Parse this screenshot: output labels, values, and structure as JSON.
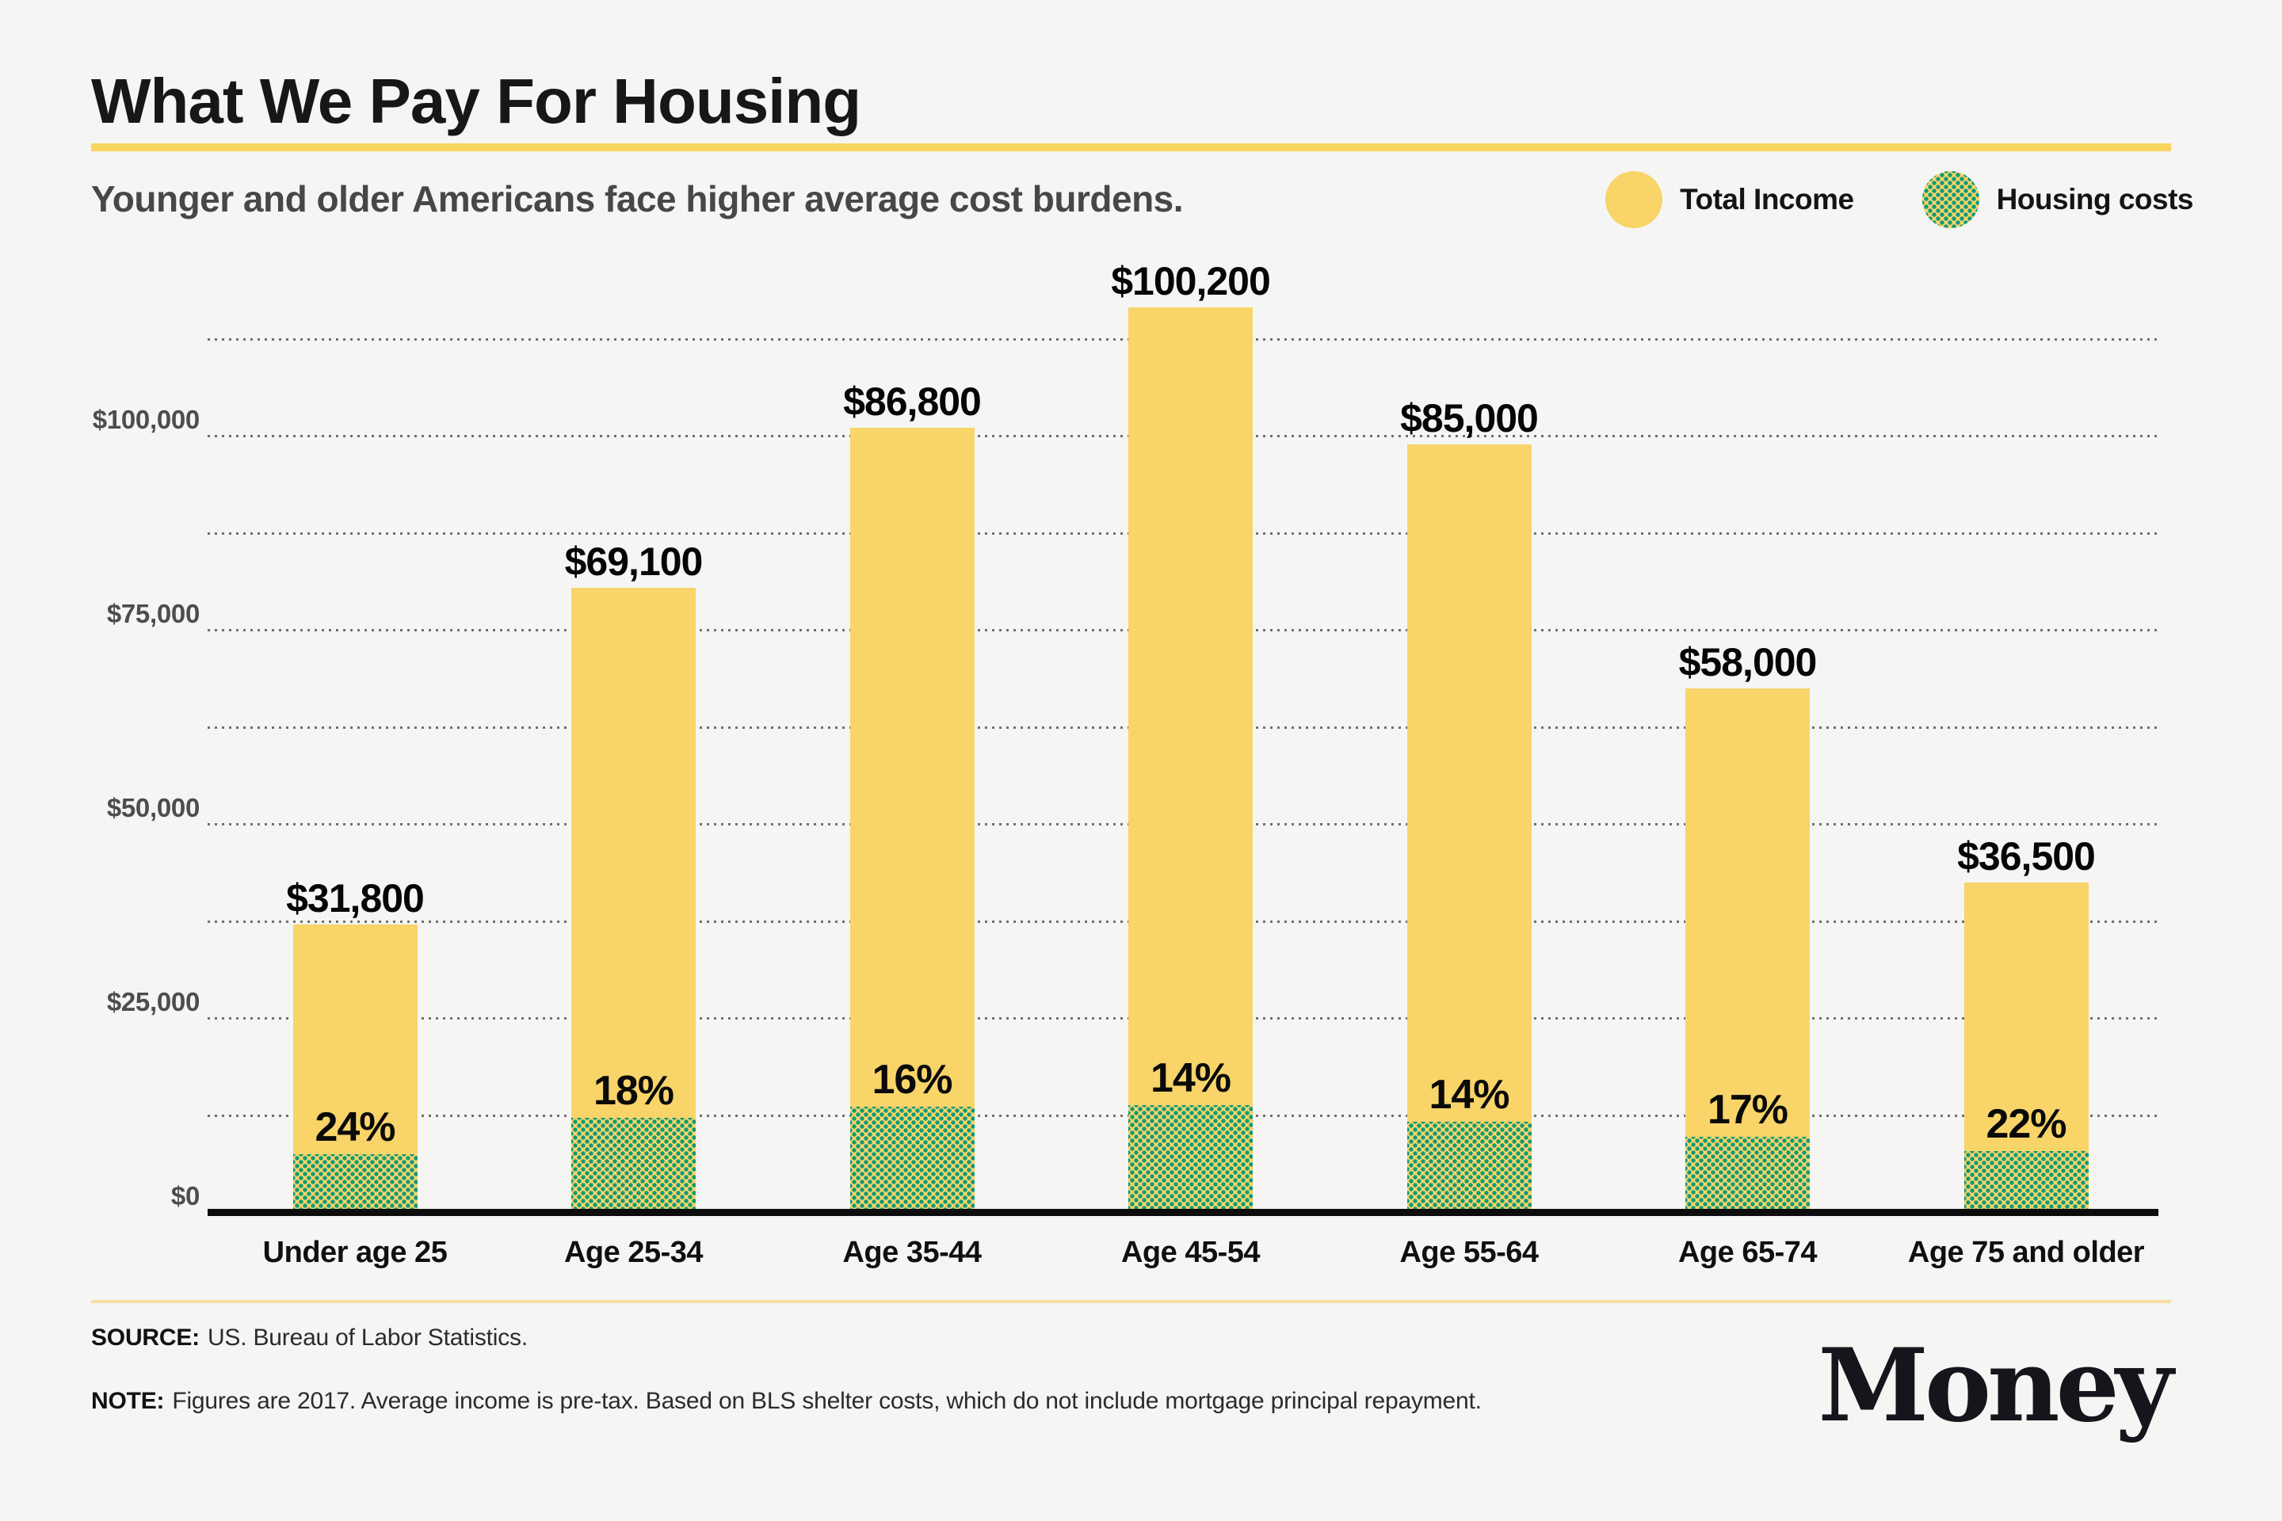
{
  "header": {
    "title": "What We Pay For Housing",
    "subtitle": "Younger and older Americans face higher average cost burdens."
  },
  "legend": {
    "items": [
      {
        "label": "Total Income",
        "swatch": "solid-yellow-circle"
      },
      {
        "label": "Housing costs",
        "swatch": "yellow-circle-green-dots"
      }
    ]
  },
  "chart_data": {
    "type": "bar",
    "title": "What We Pay For Housing",
    "subtitle": "Younger and older Americans face higher average cost burdens.",
    "categories": [
      "Under age 25",
      "Age 25-34",
      "Age 35-44",
      "Age 45-54",
      "Age 55-64",
      "Age 65-74",
      "Age 75 and older"
    ],
    "series": [
      {
        "name": "Total Income",
        "values": [
          31800,
          69100,
          86800,
          100200,
          85000,
          58000,
          36500
        ],
        "labels": [
          "$31,800",
          "$69,100",
          "$86,800",
          "$100,200",
          "$85,000",
          "$58,000",
          "$36,500"
        ]
      },
      {
        "name": "Housing costs",
        "percent_of_income": [
          24,
          18,
          16,
          14,
          14,
          17,
          22
        ],
        "labels": [
          "24%",
          "18%",
          "16%",
          "14%",
          "14%",
          "17%",
          "22%"
        ]
      }
    ],
    "y_axis": {
      "ticks": [
        {
          "value": 0,
          "label": "$0"
        },
        {
          "value": 25000,
          "label": "$25,000"
        },
        {
          "value": 50000,
          "label": "$50,000"
        },
        {
          "value": 75000,
          "label": "$75,000"
        },
        {
          "value": 100000,
          "label": "$100,000"
        }
      ],
      "minor_step": 12500,
      "top_gridline_value": 112500,
      "ylim": [
        0,
        112500
      ]
    },
    "grid": true,
    "legend_position": "top-right"
  },
  "footer": {
    "source_label": "SOURCE:",
    "source_text": "US. Bureau of Labor Statistics.",
    "note_label": "NOTE:",
    "note_text": "Figures are 2017. Average income is pre-tax. Based on BLS shelter costs, which do not include mortgage principal repayment.",
    "brand": "Money"
  },
  "colors": {
    "background": "#F5F5F3",
    "bar_yellow": "#F8D469",
    "dot_green": "#0F9B77",
    "title_underline": "#F9D45F",
    "footer_divider": "#F5E0A2",
    "axis": "#0D0D0D",
    "gridline": "#4E4E4E",
    "tick_label": "#4D4D4D"
  }
}
